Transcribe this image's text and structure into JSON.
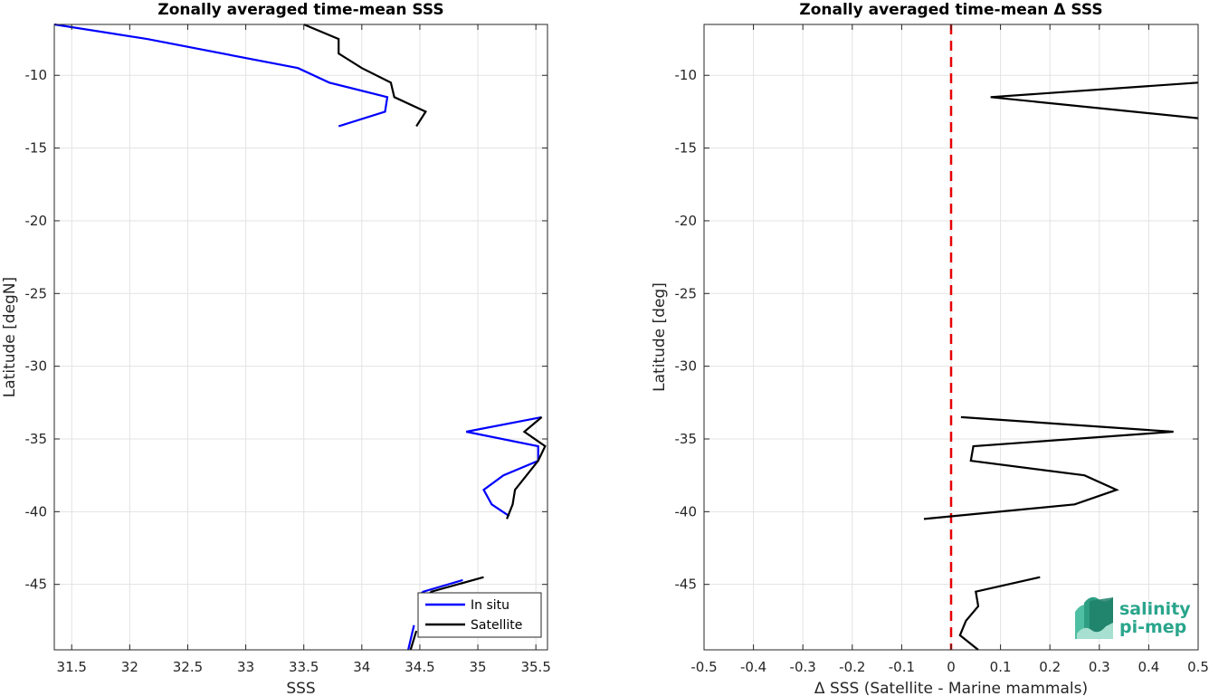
{
  "chart_data": [
    {
      "type": "line",
      "title": "Zonally averaged time-mean SSS",
      "xlabel": "SSS",
      "ylabel": "Latitude [degN]",
      "xlim": [
        31.35,
        35.6
      ],
      "ylim": [
        -49.5,
        -6.5
      ],
      "x_ticks": [
        31.5,
        32,
        32.5,
        33,
        33.5,
        34,
        34.5,
        35,
        35.5
      ],
      "x_tick_labels": [
        "31.5",
        "32",
        "32.5",
        "33",
        "33.5",
        "34",
        "34.5",
        "35",
        "35.5"
      ],
      "y_ticks": [
        -10,
        -15,
        -20,
        -25,
        -30,
        -35,
        -40,
        -45
      ],
      "y_tick_labels": [
        "-10",
        "-15",
        "-20",
        "-25",
        "-30",
        "-35",
        "-40",
        "-45"
      ],
      "grid": true,
      "legend": "bottom-right",
      "series": [
        {
          "name": "In situ",
          "color": "#0000ff",
          "segments": [
            [
              [
                31.35,
                -6.5
              ],
              [
                32.15,
                -7.5
              ],
              [
                33.45,
                -9.5
              ],
              [
                33.72,
                -10.5
              ],
              [
                34.22,
                -11.5
              ],
              [
                34.2,
                -12.5
              ],
              [
                33.8,
                -13.5
              ]
            ],
            [
              [
                35.55,
                -33.5
              ],
              [
                34.9,
                -34.5
              ],
              [
                35.52,
                -35.5
              ],
              [
                35.52,
                -36.5
              ],
              [
                35.22,
                -37.5
              ],
              [
                35.05,
                -38.5
              ],
              [
                35.12,
                -39.5
              ],
              [
                35.27,
                -40.3
              ]
            ],
            [
              [
                34.87,
                -44.7
              ],
              [
                34.53,
                -45.5
              ],
              [
                34.5,
                -45.7
              ]
            ],
            [
              [
                34.45,
                -47.8
              ],
              [
                34.4,
                -49.5
              ]
            ]
          ]
        },
        {
          "name": "Satellite",
          "color": "#000000",
          "segments": [
            [
              [
                33.5,
                -6.5
              ],
              [
                33.8,
                -7.5
              ],
              [
                33.8,
                -8.5
              ],
              [
                34.0,
                -9.5
              ],
              [
                34.25,
                -10.5
              ],
              [
                34.28,
                -11.5
              ],
              [
                34.55,
                -12.5
              ],
              [
                34.47,
                -13.5
              ]
            ],
            [
              [
                35.55,
                -33.5
              ],
              [
                35.4,
                -34.5
              ],
              [
                35.58,
                -35.5
              ],
              [
                35.52,
                -36.5
              ],
              [
                35.42,
                -37.5
              ],
              [
                35.32,
                -38.5
              ],
              [
                35.3,
                -39.5
              ],
              [
                35.25,
                -40.5
              ]
            ],
            [
              [
                35.05,
                -44.5
              ],
              [
                34.6,
                -45.5
              ],
              [
                34.56,
                -45.8
              ]
            ],
            [
              [
                34.47,
                -48.2
              ],
              [
                34.42,
                -49.5
              ]
            ]
          ]
        }
      ]
    },
    {
      "type": "line",
      "title": "Zonally averaged time-mean Δ SSS",
      "xlabel": "Δ SSS (Satellite - Marine mammals)",
      "ylabel": "Latitude [deg]",
      "xlim": [
        -0.5,
        0.5
      ],
      "ylim": [
        -49.5,
        -6.5
      ],
      "x_ticks": [
        -0.5,
        -0.4,
        -0.3,
        -0.2,
        -0.1,
        0,
        0.1,
        0.2,
        0.3,
        0.4,
        0.5
      ],
      "x_tick_labels": [
        "-0.5",
        "-0.4",
        "-0.3",
        "-0.2",
        "-0.1",
        "0",
        "0.1",
        "0.2",
        "0.3",
        "0.4",
        "0.5"
      ],
      "y_ticks": [
        -10,
        -15,
        -20,
        -25,
        -30,
        -35,
        -40,
        -45
      ],
      "y_tick_labels": [
        "-10",
        "-15",
        "-20",
        "-25",
        "-30",
        "-35",
        "-40",
        "-45"
      ],
      "grid": true,
      "reference_line": {
        "x": 0,
        "color": "#e60000",
        "style": "dashed"
      },
      "series": [
        {
          "color": "#000000",
          "segments": [
            [
              [
                0.5,
                -10.5
              ],
              [
                0.08,
                -11.5
              ],
              [
                0.5,
                -12.95
              ]
            ],
            [
              [
                0.02,
                -33.5
              ],
              [
                0.45,
                -34.5
              ],
              [
                0.045,
                -35.5
              ],
              [
                0.04,
                -36.5
              ],
              [
                0.27,
                -37.5
              ],
              [
                0.335,
                -38.5
              ],
              [
                0.25,
                -39.5
              ],
              [
                -0.055,
                -40.5
              ]
            ],
            [
              [
                0.18,
                -44.5
              ],
              [
                0.05,
                -45.5
              ],
              [
                0.055,
                -46.5
              ],
              [
                0.03,
                -47.5
              ],
              [
                0.018,
                -48.5
              ],
              [
                0.055,
                -49.5
              ]
            ]
          ]
        }
      ]
    }
  ],
  "logo": {
    "line1": "salinity",
    "line2": "pi-mep"
  }
}
